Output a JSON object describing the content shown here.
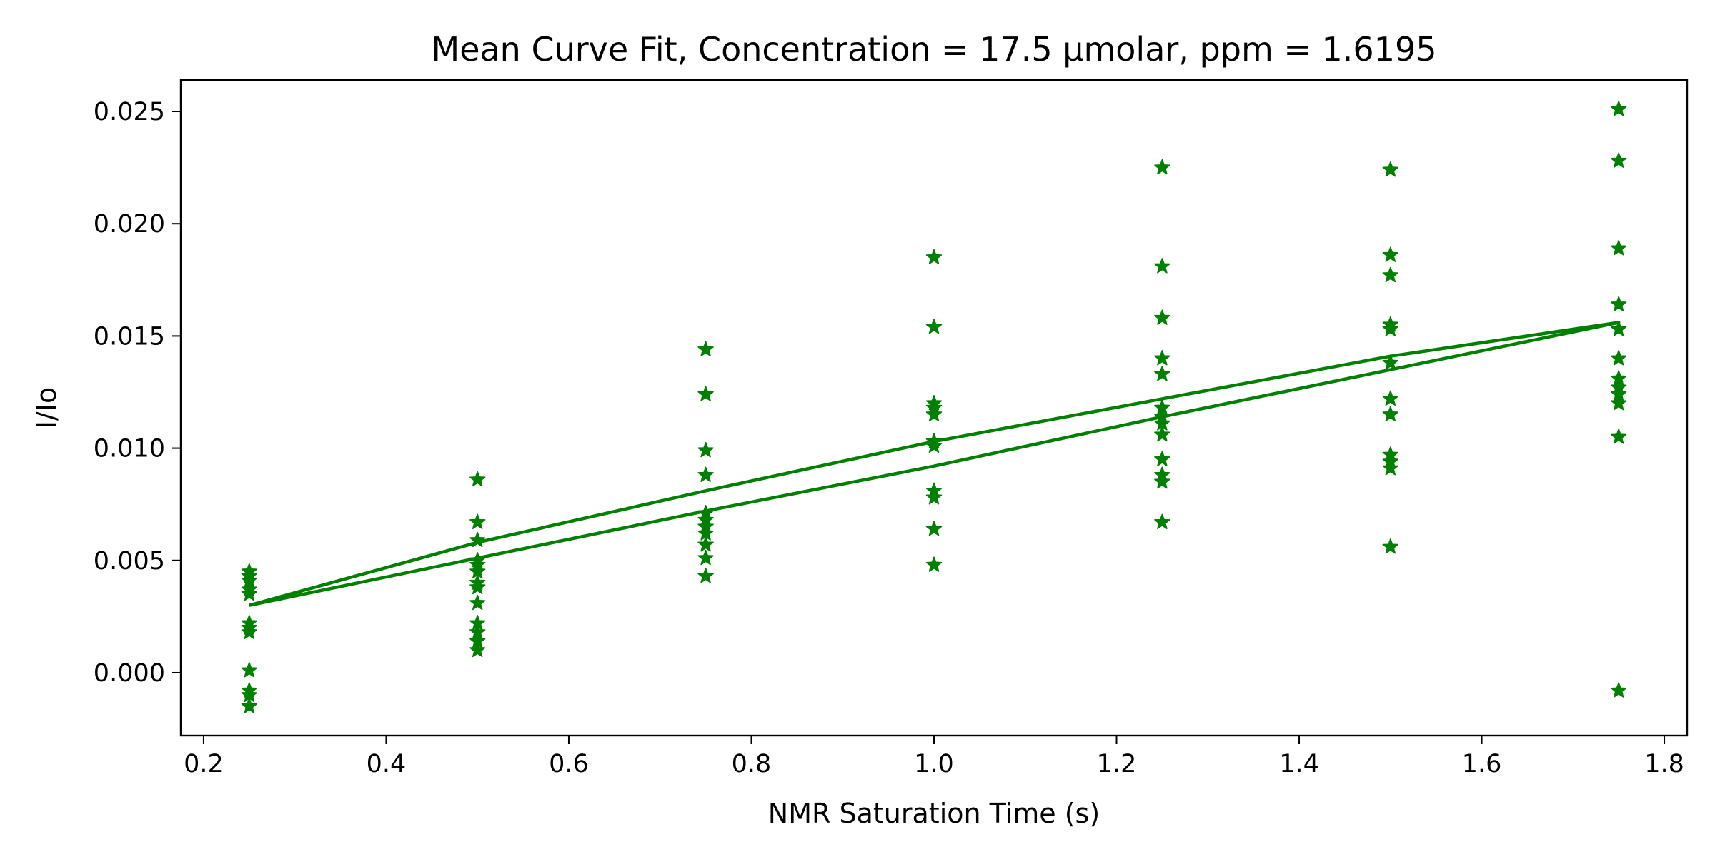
{
  "chart_data": {
    "type": "scatter",
    "title": "Mean Curve Fit, Concentration = 17.5 µmolar, ppm = 1.6195",
    "xlabel": "NMR Saturation Time (s)",
    "ylabel": "I/Io",
    "xlim": [
      0.175,
      1.825
    ],
    "ylim": [
      -0.0028,
      0.0264
    ],
    "xticks": [
      0.2,
      0.4,
      0.6,
      0.8,
      1.0,
      1.2,
      1.4,
      1.6,
      1.8
    ],
    "xtick_labels": [
      "0.2",
      "0.4",
      "0.6",
      "0.8",
      "1.0",
      "1.2",
      "1.4",
      "1.6",
      "1.8"
    ],
    "yticks": [
      0.0,
      0.005,
      0.01,
      0.015,
      0.02,
      0.025
    ],
    "ytick_labels": [
      "0.000",
      "0.005",
      "0.010",
      "0.015",
      "0.020",
      "0.025"
    ],
    "grid": false,
    "color": "#008000",
    "marker": "star",
    "series": [
      {
        "type": "scatter",
        "points": [
          [
            0.25,
            0.0045
          ],
          [
            0.25,
            0.0043
          ],
          [
            0.25,
            0.0041
          ],
          [
            0.25,
            0.0037
          ],
          [
            0.25,
            0.0035
          ],
          [
            0.25,
            0.0022
          ],
          [
            0.25,
            0.002
          ],
          [
            0.25,
            0.0018
          ],
          [
            0.25,
            0.0001
          ],
          [
            0.25,
            -0.0008
          ],
          [
            0.25,
            -0.001
          ],
          [
            0.25,
            -0.0015
          ],
          [
            0.5,
            0.0086
          ],
          [
            0.5,
            0.0067
          ],
          [
            0.5,
            0.0059
          ],
          [
            0.5,
            0.005
          ],
          [
            0.5,
            0.0048
          ],
          [
            0.5,
            0.0045
          ],
          [
            0.5,
            0.004
          ],
          [
            0.5,
            0.0038
          ],
          [
            0.5,
            0.0031
          ],
          [
            0.5,
            0.0022
          ],
          [
            0.5,
            0.0018
          ],
          [
            0.5,
            0.0014
          ],
          [
            0.5,
            0.001
          ],
          [
            0.75,
            0.0144
          ],
          [
            0.75,
            0.0124
          ],
          [
            0.75,
            0.0099
          ],
          [
            0.75,
            0.0088
          ],
          [
            0.75,
            0.0071
          ],
          [
            0.75,
            0.0068
          ],
          [
            0.75,
            0.0065
          ],
          [
            0.75,
            0.0062
          ],
          [
            0.75,
            0.0057
          ],
          [
            0.75,
            0.0051
          ],
          [
            0.75,
            0.0043
          ],
          [
            1.0,
            0.0185
          ],
          [
            1.0,
            0.0154
          ],
          [
            1.0,
            0.012
          ],
          [
            1.0,
            0.0118
          ],
          [
            1.0,
            0.0115
          ],
          [
            1.0,
            0.0103
          ],
          [
            1.0,
            0.0101
          ],
          [
            1.0,
            0.0081
          ],
          [
            1.0,
            0.0078
          ],
          [
            1.0,
            0.0064
          ],
          [
            1.0,
            0.0048
          ],
          [
            1.25,
            0.0225
          ],
          [
            1.25,
            0.0181
          ],
          [
            1.25,
            0.0158
          ],
          [
            1.25,
            0.014
          ],
          [
            1.25,
            0.0133
          ],
          [
            1.25,
            0.0118
          ],
          [
            1.25,
            0.0114
          ],
          [
            1.25,
            0.0111
          ],
          [
            1.25,
            0.0106
          ],
          [
            1.25,
            0.0095
          ],
          [
            1.25,
            0.0088
          ],
          [
            1.25,
            0.0085
          ],
          [
            1.25,
            0.0067
          ],
          [
            1.5,
            0.0224
          ],
          [
            1.5,
            0.0186
          ],
          [
            1.5,
            0.0177
          ],
          [
            1.5,
            0.0155
          ],
          [
            1.5,
            0.0153
          ],
          [
            1.5,
            0.0138
          ],
          [
            1.5,
            0.0122
          ],
          [
            1.5,
            0.0115
          ],
          [
            1.5,
            0.0097
          ],
          [
            1.5,
            0.0094
          ],
          [
            1.5,
            0.0091
          ],
          [
            1.5,
            0.0056
          ],
          [
            1.75,
            0.0251
          ],
          [
            1.75,
            0.0228
          ],
          [
            1.75,
            0.0189
          ],
          [
            1.75,
            0.0164
          ],
          [
            1.75,
            0.0153
          ],
          [
            1.75,
            0.014
          ],
          [
            1.75,
            0.0131
          ],
          [
            1.75,
            0.0127
          ],
          [
            1.75,
            0.0124
          ],
          [
            1.75,
            0.012
          ],
          [
            1.75,
            0.0105
          ],
          [
            1.75,
            -0.0008
          ]
        ]
      },
      {
        "type": "line",
        "x": [
          0.25,
          0.5,
          0.75,
          1.0,
          1.25,
          1.5,
          1.75,
          1.5,
          1.25,
          1.0,
          0.75,
          0.5,
          0.25
        ],
        "y": [
          0.003,
          0.0051,
          0.0072,
          0.0092,
          0.0114,
          0.0135,
          0.0156,
          0.0141,
          0.0122,
          0.0103,
          0.0081,
          0.0058,
          0.003
        ]
      }
    ]
  }
}
